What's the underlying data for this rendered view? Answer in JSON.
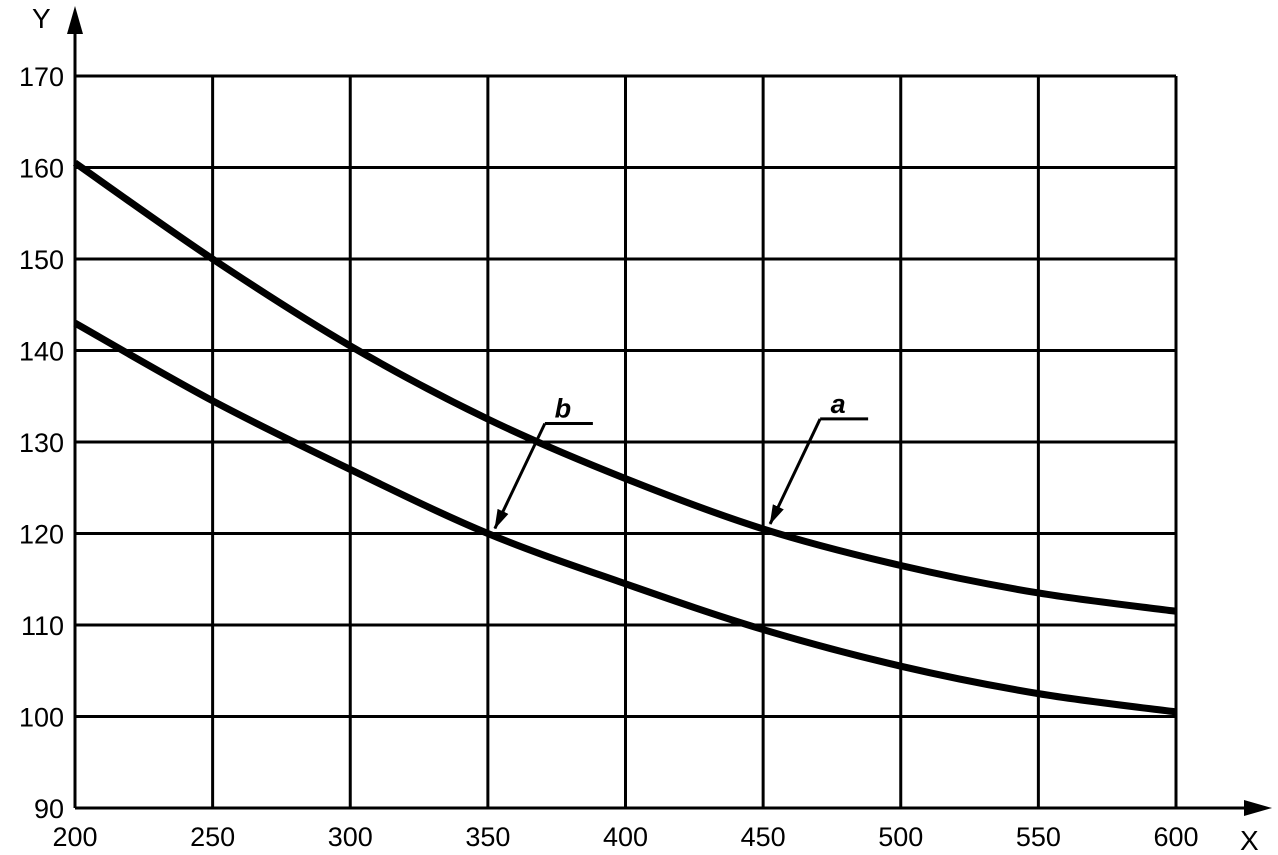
{
  "chart_data": {
    "type": "line",
    "title": "",
    "xlabel": "X",
    "ylabel": "Y",
    "xlim": [
      200,
      600
    ],
    "ylim": [
      90,
      170
    ],
    "x_ticks": [
      200,
      250,
      300,
      350,
      400,
      450,
      500,
      550,
      600
    ],
    "y_ticks": [
      90,
      100,
      110,
      120,
      130,
      140,
      150,
      160,
      170
    ],
    "grid": true,
    "colors": {
      "line": "#000000",
      "grid": "#000000",
      "background": "#ffffff"
    },
    "series": [
      {
        "name": "a",
        "x": [
          200,
          250,
          300,
          350,
          400,
          450,
          500,
          550,
          600
        ],
        "y": [
          160.5,
          150,
          140.5,
          132.5,
          126,
          120.5,
          116.5,
          113.5,
          111.5
        ]
      },
      {
        "name": "b",
        "x": [
          200,
          250,
          300,
          350,
          400,
          450,
          500,
          550,
          600
        ],
        "y": [
          143,
          134.5,
          127,
          120,
          114.5,
          109.5,
          105.5,
          102.5,
          100.5
        ]
      }
    ],
    "annotations": [
      {
        "text": "a",
        "series": "a",
        "x": 450,
        "y": 120.5
      },
      {
        "text": "b",
        "series": "b",
        "x": 350,
        "y": 120
      }
    ]
  }
}
